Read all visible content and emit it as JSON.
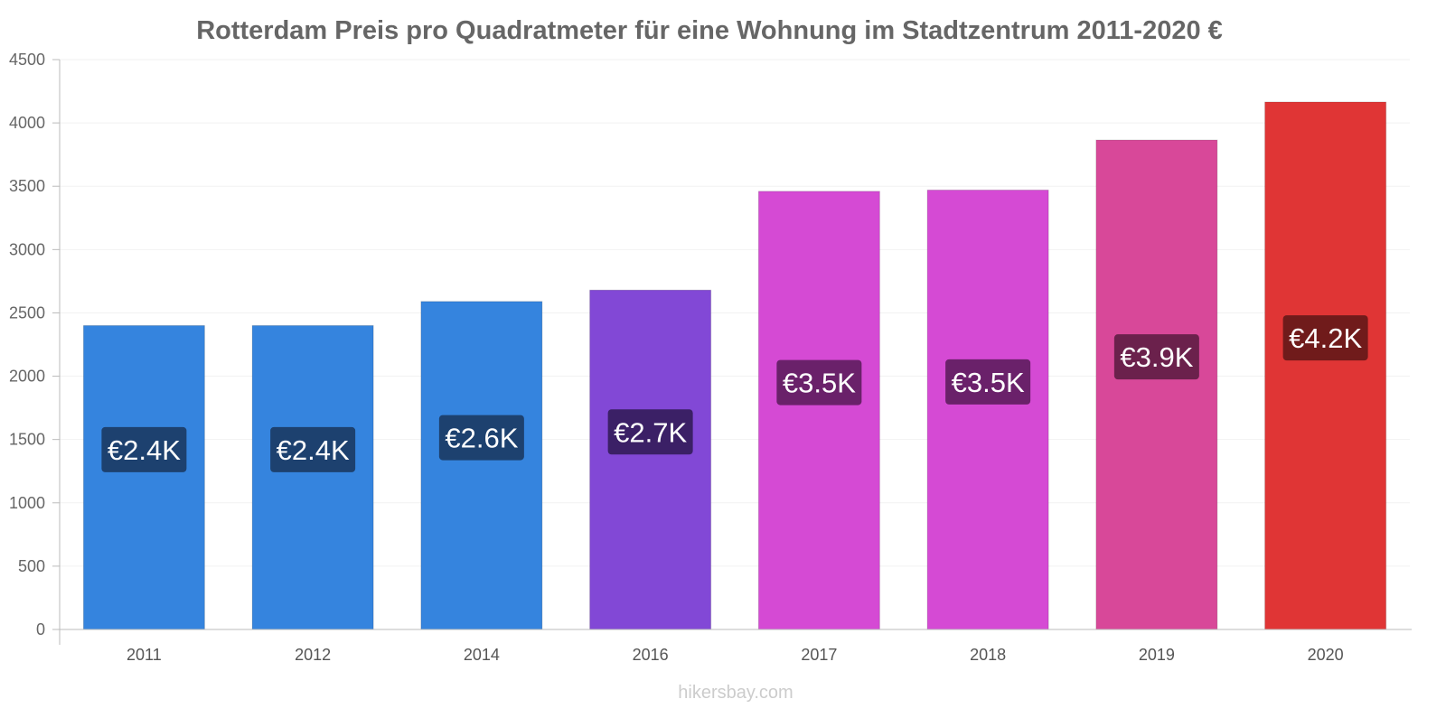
{
  "chart_data": {
    "type": "bar",
    "title": "Rotterdam Preis pro Quadratmeter für eine Wohnung im Stadtzentrum 2011-2020 €",
    "xlabel": "",
    "ylabel": "",
    "ylim": [
      0,
      4500
    ],
    "yticks": [
      0,
      500,
      1000,
      1500,
      2000,
      2500,
      3000,
      3500,
      4000,
      4500
    ],
    "grid": true,
    "categories": [
      "2011",
      "2012",
      "2014",
      "2016",
      "2017",
      "2018",
      "2019",
      "2020"
    ],
    "values": [
      2400,
      2400,
      2590,
      2680,
      3460,
      3470,
      3865,
      4165
    ],
    "data_labels": [
      "€2.4K",
      "€2.4K",
      "€2.6K",
      "€2.7K",
      "€3.5K",
      "€3.5K",
      "€3.9K",
      "€4.2K"
    ],
    "bar_colors": [
      "#3584de",
      "#3584de",
      "#3584de",
      "#8248d6",
      "#d54ad4",
      "#d54ad4",
      "#d84899",
      "#e03535"
    ],
    "label_colors": [
      "#1d416f",
      "#1d416f",
      "#1d416f",
      "#3b2066",
      "#6a216a",
      "#6a216a",
      "#6b214c",
      "#701b1b"
    ]
  },
  "watermark": "hikersbay.com"
}
